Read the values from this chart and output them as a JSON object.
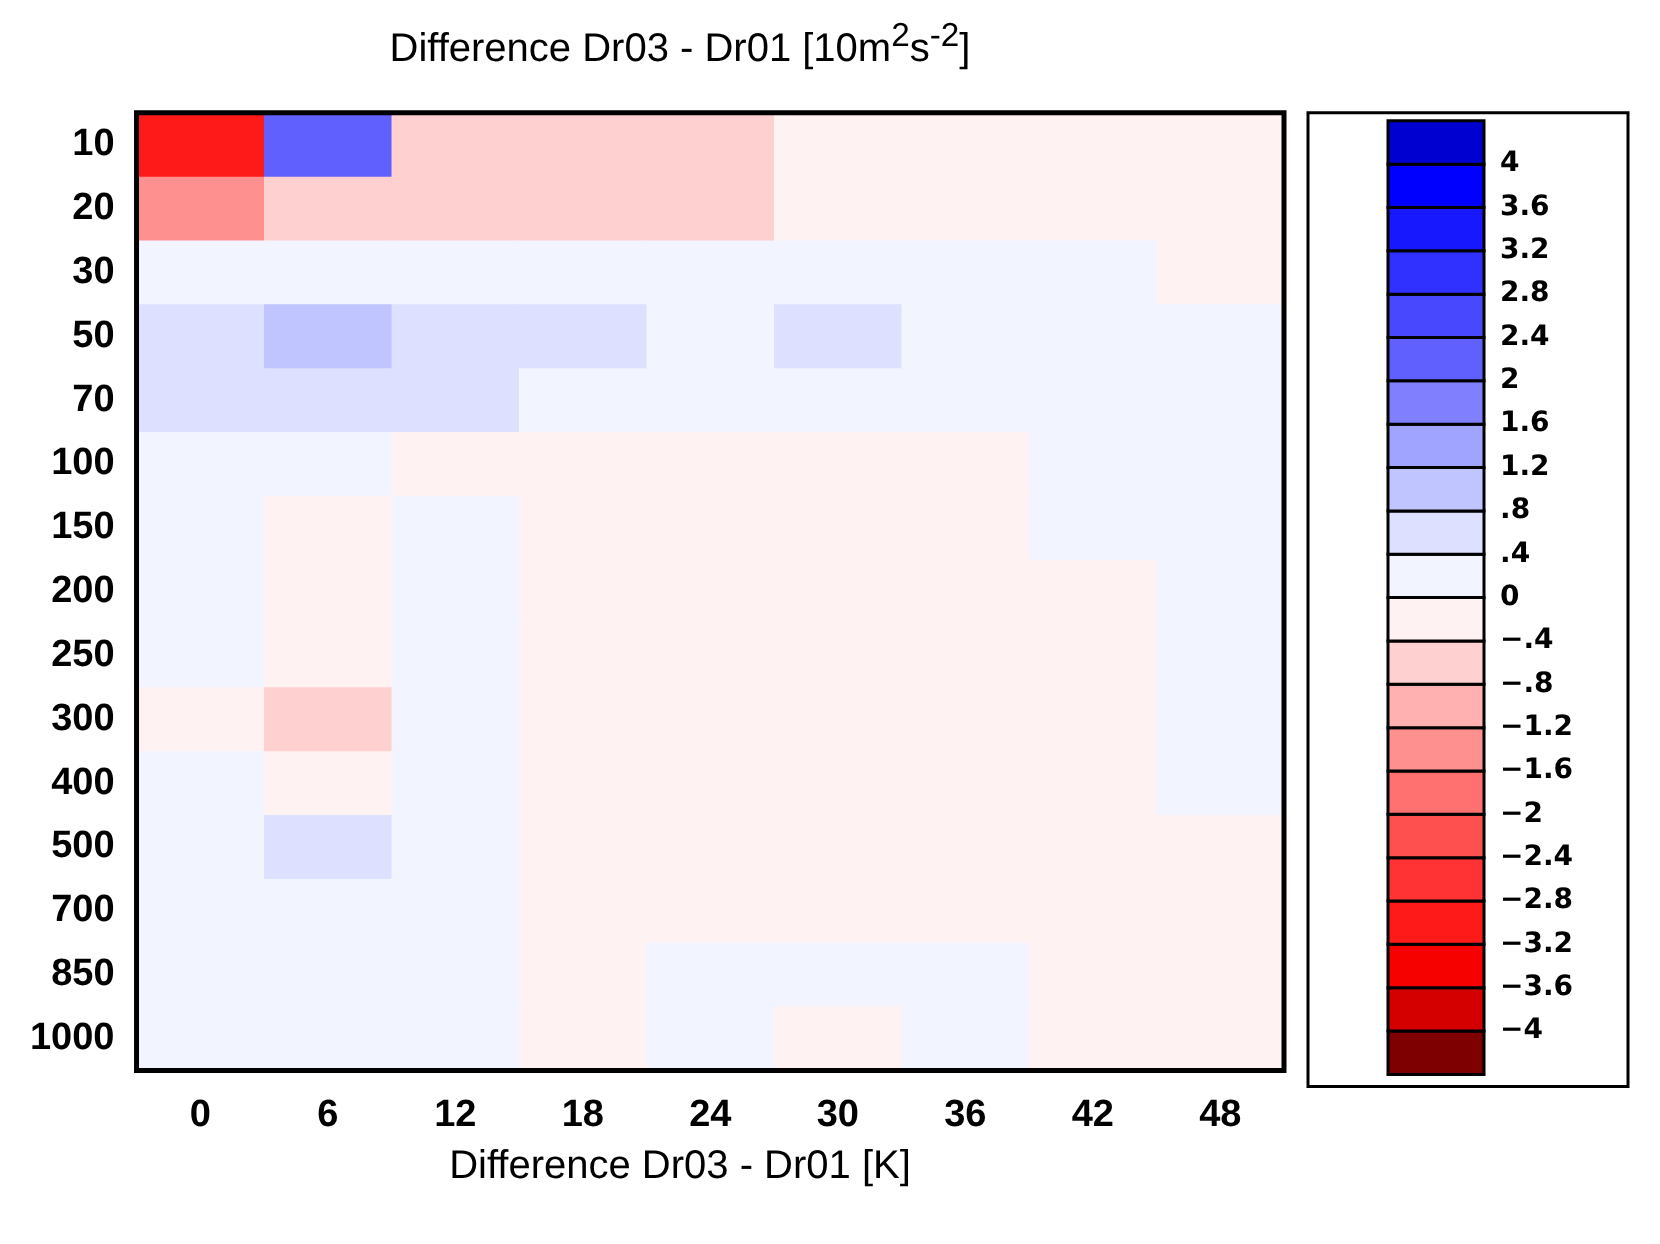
{
  "chart_data": {
    "type": "heatmap",
    "title": "Difference Dr03 - Dr01 [10m$^{2}$s$^{-2}$]",
    "categories": [
      "0",
      "6",
      "12",
      "18",
      "24",
      "30",
      "36",
      "42",
      "48"
    ],
    "y_categories": [
      "10",
      "20",
      "30",
      "50",
      "70",
      "100",
      "150",
      "200",
      "250",
      "300",
      "400",
      "500",
      "700",
      "850",
      "1000"
    ],
    "cells": [
      [
        -3,
        2,
        -0.8,
        -0.6,
        -0.5,
        -0.2,
        -0.2,
        -0.2,
        -0.2
      ],
      [
        -1.5,
        -0.6,
        -0.5,
        -0.5,
        -0.5,
        -0.2,
        -0.2,
        -0.2,
        -0.2
      ],
      [
        0.2,
        0.3,
        0.1,
        0.1,
        0.1,
        0.1,
        0.1,
        0.1,
        -0.1
      ],
      [
        0.7,
        1,
        0.5,
        0.5,
        0.3,
        0.5,
        0.2,
        0.2,
        0.2
      ],
      [
        0.5,
        0.5,
        0.4,
        0.3,
        0.2,
        0.2,
        0.2,
        0.1,
        0.1
      ],
      [
        0.3,
        0.2,
        -0.1,
        -0.1,
        -0.1,
        -0.1,
        -0.1,
        0.1,
        0.1
      ],
      [
        0.2,
        -0.1,
        0.1,
        -0.1,
        -0.1,
        -0.1,
        -0.1,
        0.1,
        0.1
      ],
      [
        0.1,
        -0.2,
        0.1,
        -0.1,
        -0.1,
        -0.1,
        -0.1,
        -0.1,
        0.1
      ],
      [
        0.1,
        -0.3,
        0.1,
        -0.1,
        -0.1,
        -0.1,
        -0.1,
        -0.1,
        0.1
      ],
      [
        -0.1,
        -0.5,
        0.1,
        -0.1,
        -0.1,
        -0.1,
        -0.1,
        -0.1,
        0.1
      ],
      [
        0.1,
        -0.3,
        0.1,
        -0.1,
        -0.1,
        -0.1,
        -0.1,
        -0.1,
        0.1
      ],
      [
        0.1,
        0.5,
        0.1,
        -0.1,
        -0.1,
        -0.1,
        -0.1,
        -0.1,
        -0.1
      ],
      [
        0.1,
        0.1,
        0.1,
        -0.1,
        -0.1,
        -0.1,
        -0.1,
        -0.1,
        -0.1
      ],
      [
        0.1,
        0.1,
        0.1,
        -0.1,
        0.1,
        0.1,
        0.1,
        -0.1,
        -0.1
      ],
      [
        0.1,
        0.1,
        0.1,
        -0.1,
        0.1,
        -0.1,
        0.1,
        -0.1,
        -0.1
      ]
    ],
    "clim": [
      -4.4,
      4.4
    ],
    "cticks": [
      {
        "value": -4,
        "label": "−4"
      },
      {
        "value": -3.6,
        "label": "−3.6"
      },
      {
        "value": -3.2,
        "label": "−3.2"
      },
      {
        "value": -2.8,
        "label": "−2.8"
      },
      {
        "value": -2.4,
        "label": "−2.4"
      },
      {
        "value": -2,
        "label": "−2"
      },
      {
        "value": -1.6,
        "label": "−1.6"
      },
      {
        "value": -1.2,
        "label": "−1.2"
      },
      {
        "value": -0.8,
        "label": "−.8"
      },
      {
        "value": -0.4,
        "label": "−.4"
      },
      0,
      {
        "value": 0.4,
        "label": ".4"
      },
      {
        "value": 0.8,
        "label": ".8"
      },
      1.2,
      1.6,
      2,
      2.4,
      2.8,
      3.2,
      3.6,
      4
    ],
    "annotations": [
      "Difference Dr03 - Dr01 [K]"
    ]
  }
}
